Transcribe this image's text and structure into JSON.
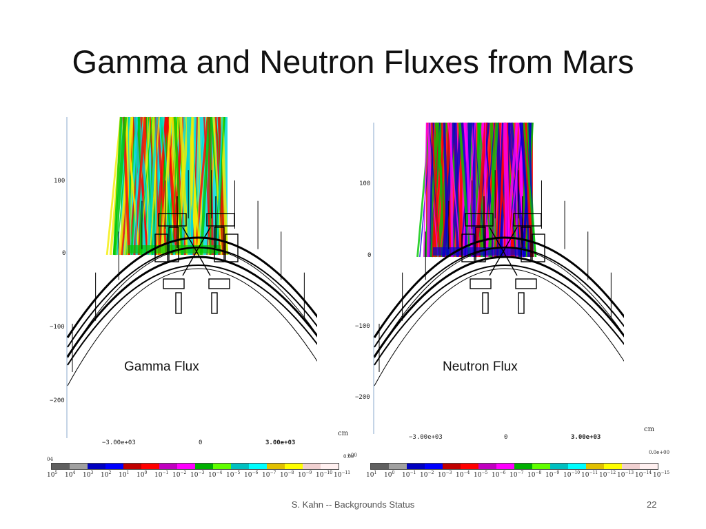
{
  "title": "Gamma and Neutron Fluxes from Mars",
  "footer": "S. Kahn -- Backgrounds Status",
  "page_number": "22",
  "left_plot": {
    "label": "Gamma Flux",
    "y_ticks": [
      "100",
      "0",
      "−100",
      "−200"
    ],
    "x_ticks": [
      "−3.00e+03",
      "0",
      "3.00e+03"
    ],
    "unit": "cm",
    "scale_left_edge": "04",
    "scale_right_edge": "0.0e",
    "scale_exponents": [
      "5",
      "4",
      "3",
      "2",
      "1",
      "0",
      "−1",
      "−2",
      "−3",
      "−4",
      "−5",
      "−6",
      "−7",
      "−8",
      "−9",
      "−10",
      "−11"
    ],
    "dominant_colors": [
      "#00d8d8",
      "#f5ee00",
      "#ff0000",
      "#00c800"
    ]
  },
  "right_plot": {
    "label": "Neutron Flux",
    "y_ticks": [
      "100",
      "0",
      "−100",
      "−200"
    ],
    "x_ticks": [
      "−3.00e+03",
      "0",
      "3.00e+03"
    ],
    "unit": "cm",
    "scale_left_edge": "+00",
    "scale_right_edge": "0.0e+00",
    "scale_exponents": [
      "1",
      "0",
      "−1",
      "−2",
      "−3",
      "−4",
      "−5",
      "−6",
      "−7",
      "−8",
      "−9",
      "−10",
      "−11",
      "−12",
      "−13",
      "−14",
      "−15"
    ],
    "dominant_colors": [
      "#ff0000",
      "#ff00ff",
      "#00c800",
      "#0000d0"
    ]
  },
  "scale_colors": [
    "#606060",
    "#a0a0a0",
    "#0000c0",
    "#0000ff",
    "#c00000",
    "#ff0000",
    "#c000c0",
    "#ff00ff",
    "#00b000",
    "#60ff00",
    "#00c0c0",
    "#00ffff",
    "#e0c000",
    "#ffff00",
    "#f0d0d0",
    "#fff0f0"
  ]
}
